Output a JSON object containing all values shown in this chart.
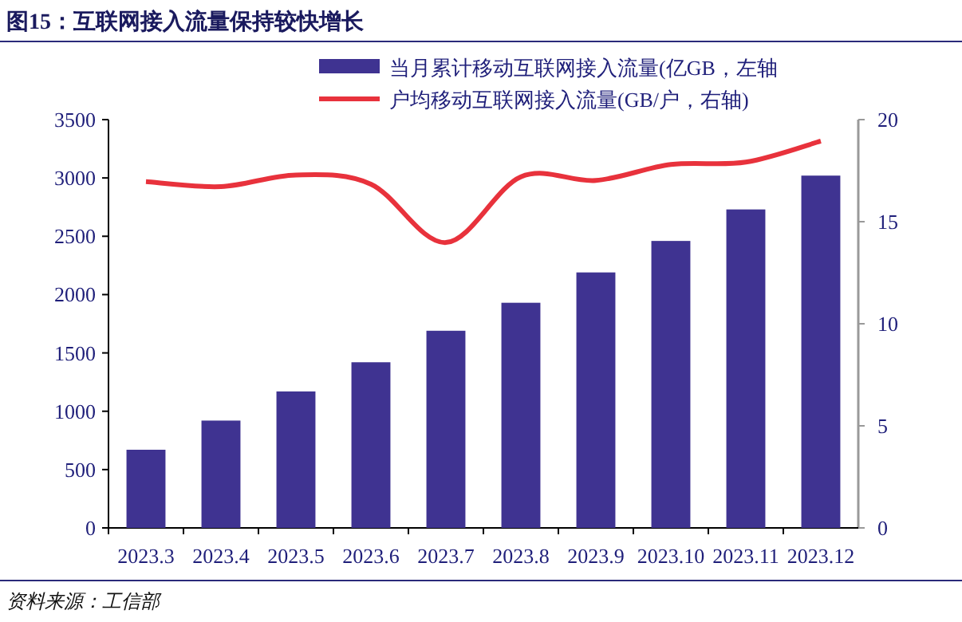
{
  "chart_data": {
    "type": "bar",
    "title": "图15：互联网接入流量保持较快增长",
    "categories": [
      "2023.3",
      "2023.4",
      "2023.5",
      "2023.6",
      "2023.7",
      "2023.8",
      "2023.9",
      "2023.10",
      "2023.11",
      "2023.12"
    ],
    "series": [
      {
        "name": "当月累计移动互联网接入流量(亿GB，左轴",
        "color": "#3f3391",
        "values": [
          670,
          920,
          1170,
          1420,
          1690,
          1930,
          2190,
          2460,
          2730,
          3020
        ]
      },
      {
        "name": "户均移动互联网接入流量(GB/户，右轴)",
        "type": "line",
        "axis": "y2",
        "color": "#e8323c",
        "values": [
          16.96,
          16.72,
          17.29,
          16.84,
          13.98,
          17.2,
          17.02,
          17.8,
          17.92,
          18.95
        ]
      }
    ],
    "ylim": [
      0,
      3500
    ],
    "yticks": [
      0,
      500,
      1000,
      1500,
      2000,
      2500,
      3000,
      3500
    ],
    "y2lim": [
      0,
      20
    ],
    "y2ticks": [
      0,
      5,
      10,
      15,
      20
    ],
    "legend": "top",
    "grid": false,
    "annotations": [
      "资料来源：工信部"
    ]
  }
}
